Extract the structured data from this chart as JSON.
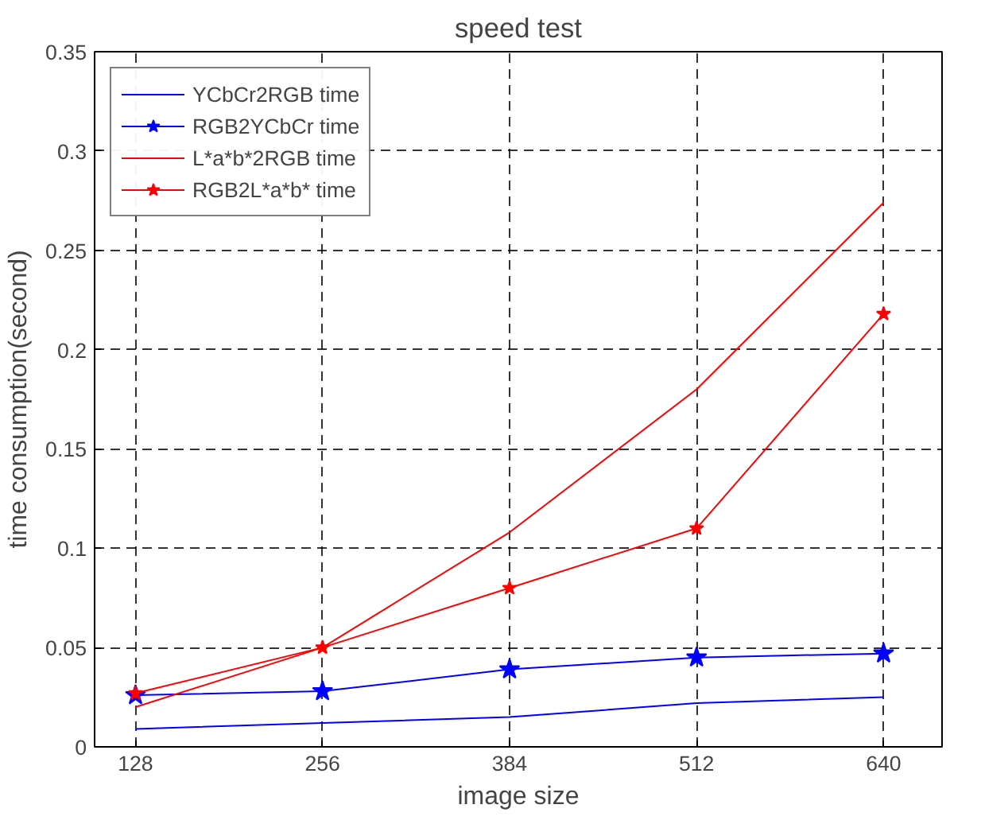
{
  "chart_data": {
    "type": "line",
    "title": "speed test",
    "xlabel": "image size",
    "ylabel": "time consumption(second)",
    "x": [
      128,
      256,
      384,
      512,
      640
    ],
    "series": [
      {
        "name": "YCbCr2RGB time",
        "color": "#0000ff",
        "marker": "none",
        "values": [
          0.009,
          0.012,
          0.015,
          0.022,
          0.025
        ]
      },
      {
        "name": "RGB2YCbCr time",
        "color": "#0000ff",
        "marker": "star",
        "values": [
          0.026,
          0.028,
          0.039,
          0.045,
          0.047
        ]
      },
      {
        "name": "L*a*b*2RGB time",
        "color": "#ff0000",
        "marker": "none",
        "values": [
          0.02,
          0.05,
          0.108,
          0.18,
          0.274
        ]
      },
      {
        "name": "RGB2L*a*b* time",
        "color": "#ff0000",
        "marker": "star",
        "values": [
          0.027,
          0.05,
          0.08,
          0.11,
          0.218
        ]
      }
    ],
    "xlim": [
      100,
      680
    ],
    "xticks": [
      128,
      256,
      384,
      512,
      640
    ],
    "ylim": [
      0,
      0.35
    ],
    "yticks": [
      0,
      0.05,
      0.1,
      0.15,
      0.2,
      0.25,
      0.3,
      0.35
    ],
    "grid": true,
    "legend": "top left",
    "line_style": "solid"
  }
}
